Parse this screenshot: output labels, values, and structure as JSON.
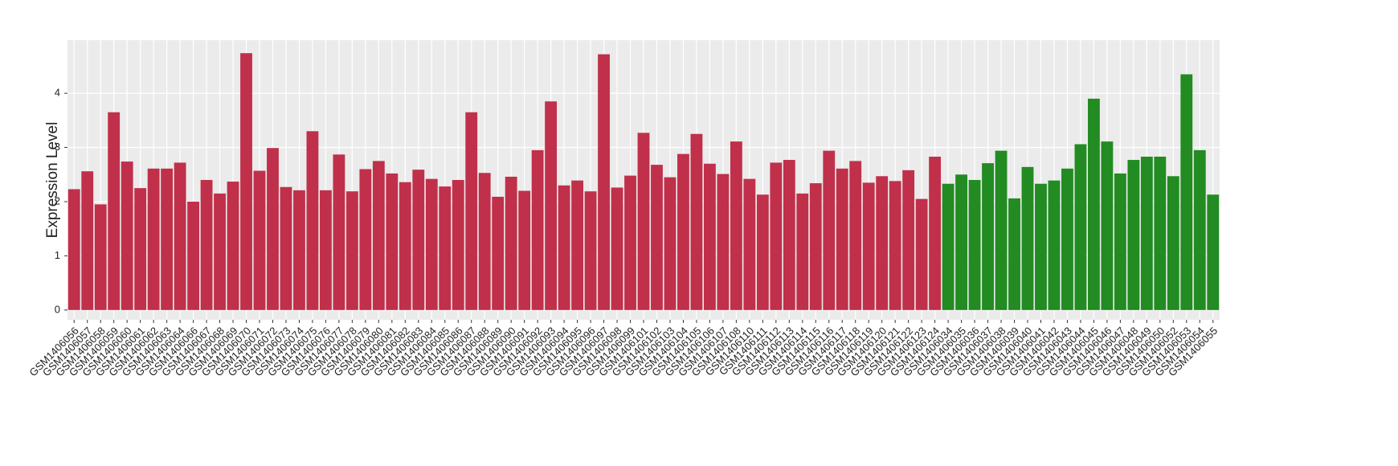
{
  "chart_data": {
    "type": "bar",
    "y_label": "Expression Level",
    "ylim": [
      -0.18,
      4.98
    ],
    "yticks": [
      0,
      1,
      2,
      3,
      4
    ],
    "grid": true,
    "series": [
      {
        "color": "#c0304a",
        "categories": [
          "GSM1406056",
          "GSM1406057",
          "GSM1406058",
          "GSM1406059",
          "GSM1406060",
          "GSM1406061",
          "GSM1406062",
          "GSM1406063",
          "GSM1406064",
          "GSM1406066",
          "GSM1406067",
          "GSM1406068",
          "GSM1406069",
          "GSM1406070",
          "GSM1406071",
          "GSM1406072",
          "GSM1406073",
          "GSM1406074",
          "GSM1406075",
          "GSM1406076",
          "GSM1406077",
          "GSM1406078",
          "GSM1406079",
          "GSM1406080",
          "GSM1406081",
          "GSM1406082",
          "GSM1406083",
          "GSM1406084",
          "GSM1406085",
          "GSM1406086",
          "GSM1406087",
          "GSM1406088",
          "GSM1406089",
          "GSM1406090",
          "GSM1406091",
          "GSM1406092",
          "GSM1406093",
          "GSM1406094",
          "GSM1406095",
          "GSM1406096",
          "GSM1406097",
          "GSM1406098",
          "GSM1406099",
          "GSM1406101",
          "GSM1406102",
          "GSM1406103",
          "GSM1406104",
          "GSM1406105",
          "GSM1406106",
          "GSM1406107",
          "GSM1406108",
          "GSM1406110",
          "GSM1406111",
          "GSM1406112",
          "GSM1406113",
          "GSM1406114",
          "GSM1406115",
          "GSM1406116",
          "GSM1406117",
          "GSM1406118",
          "GSM1406119",
          "GSM1406120",
          "GSM1406121",
          "GSM1406122",
          "GSM1406123",
          "GSM1406124"
        ],
        "values": [
          2.23,
          2.56,
          1.95,
          3.65,
          2.74,
          2.25,
          2.61,
          2.61,
          2.72,
          2.0,
          2.4,
          2.15,
          2.37,
          4.74,
          2.57,
          2.99,
          2.27,
          2.21,
          3.3,
          2.21,
          2.87,
          2.19,
          2.6,
          2.75,
          2.52,
          2.36,
          2.59,
          2.42,
          2.28,
          2.4,
          3.65,
          2.53,
          2.09,
          2.46,
          2.2,
          2.95,
          3.85,
          2.3,
          2.39,
          2.19,
          4.72,
          2.26,
          2.48,
          3.27,
          2.68,
          2.45,
          2.88,
          3.25,
          2.7,
          2.51,
          3.11,
          2.42,
          2.13,
          2.72,
          2.77,
          2.15,
          2.34,
          2.94,
          2.61,
          2.75,
          2.35,
          2.47,
          2.38,
          2.58,
          2.05,
          2.83
        ]
      },
      {
        "color": "#228b22",
        "categories": [
          "GSM1406034",
          "GSM1406035",
          "GSM1406036",
          "GSM1406037",
          "GSM1406038",
          "GSM1406039",
          "GSM1406040",
          "GSM1406041",
          "GSM1406042",
          "GSM1406043",
          "GSM1406044",
          "GSM1406045",
          "GSM1406046",
          "GSM1406047",
          "GSM1406048",
          "GSM1406049",
          "GSM1406050",
          "GSM1406052",
          "GSM1406053",
          "GSM1406054",
          "GSM1406055"
        ],
        "values": [
          2.33,
          2.5,
          2.4,
          2.71,
          2.94,
          2.06,
          2.64,
          2.33,
          2.39,
          2.61,
          3.06,
          3.9,
          3.11,
          2.52,
          2.77,
          2.83,
          2.83,
          2.47,
          4.35,
          2.95,
          2.13
        ]
      }
    ]
  }
}
